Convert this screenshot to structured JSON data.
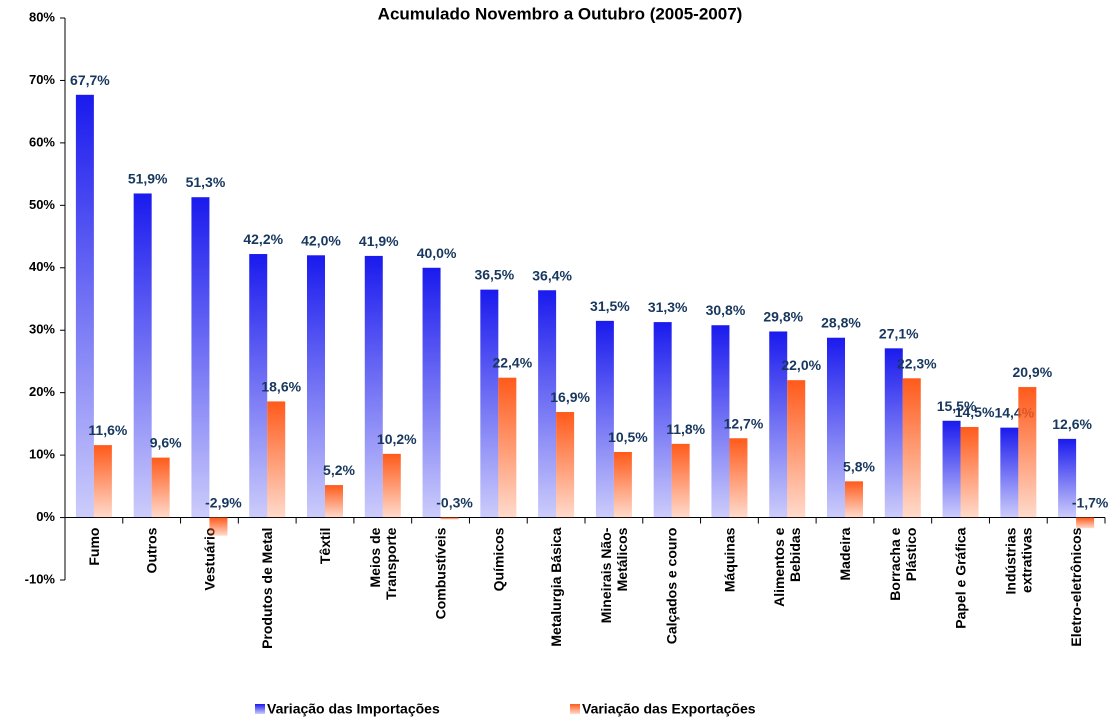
{
  "chart_data": {
    "type": "bar",
    "title": "Acumulado Novembro a Outubro (2005-2007)",
    "categories": [
      "Fumo",
      "Outros",
      "Vestuário",
      "Produtos de Metal",
      "Têxtil",
      "Meios de\nTransporte",
      "Combustíveis",
      "Químicos",
      "Metalurgia Básica",
      "Mineirais Não-\nMetálicos",
      "Calçados e couro",
      "Máquinas",
      "Alimentos e\nBebidas",
      "Madeira",
      "Borracha e\nPlástico",
      "Papel e Gráfica",
      "Indústrias\nextrativas",
      "Eletro-eletrônicos"
    ],
    "series": [
      {
        "name": "Variação das Importações",
        "color": "#1a1aee",
        "values": [
          67.7,
          51.9,
          51.3,
          42.2,
          42.0,
          41.9,
          40.0,
          36.5,
          36.4,
          31.5,
          31.3,
          30.8,
          29.8,
          28.8,
          27.1,
          15.5,
          14.4,
          12.6
        ],
        "value_labels": [
          "67,7%",
          "51,9%",
          "51,3%",
          "42,2%",
          "42,0%",
          "41,9%",
          "40,0%",
          "36,5%",
          "36,4%",
          "31,5%",
          "31,3%",
          "30,8%",
          "29,8%",
          "28,8%",
          "27,1%",
          "15,5%",
          "14,4%",
          "12,6%"
        ]
      },
      {
        "name": "Variação das Exportações",
        "color": "#ff5a1a",
        "values": [
          11.6,
          9.6,
          -2.9,
          18.6,
          5.2,
          10.2,
          -0.3,
          22.4,
          16.9,
          10.5,
          11.8,
          12.7,
          22.0,
          5.8,
          22.3,
          14.5,
          20.9,
          -1.7
        ],
        "value_labels": [
          "11,6%",
          "9,6%",
          "-2,9%",
          "18,6%",
          "5,2%",
          "10,2%",
          "-0,3%",
          "22,4%",
          "16,9%",
          "10,5%",
          "11,8%",
          "12,7%",
          "22,0%",
          "5,8%",
          "22,3%",
          "14,5%",
          "20,9%",
          "-1,7%"
        ]
      }
    ],
    "ylim": [
      -10,
      80
    ],
    "yticks": [
      {
        "value": -10,
        "label": "-10%"
      },
      {
        "value": 0,
        "label": "0%"
      },
      {
        "value": 10,
        "label": "10%"
      },
      {
        "value": 20,
        "label": "20%"
      },
      {
        "value": 30,
        "label": "30%"
      },
      {
        "value": 40,
        "label": "40%"
      },
      {
        "value": 50,
        "label": "50%"
      },
      {
        "value": 60,
        "label": "60%"
      },
      {
        "value": 70,
        "label": "70%"
      },
      {
        "value": 80,
        "label": "80%"
      }
    ],
    "legend": "bottom"
  }
}
